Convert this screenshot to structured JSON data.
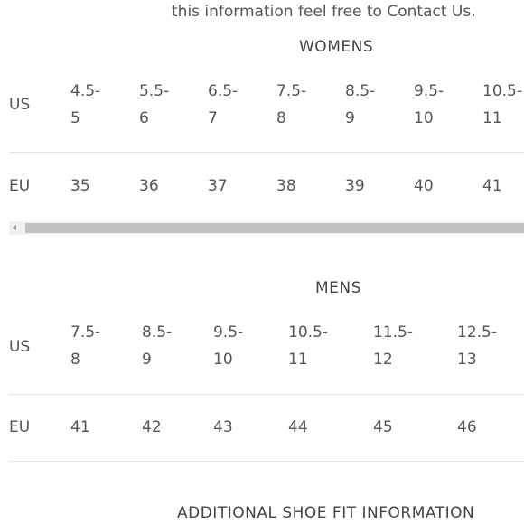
{
  "intro": "this information feel free to Contact Us.",
  "womens": {
    "title": "WOMENS",
    "us": {
      "label": "US",
      "cells": [
        [
          "4.5-",
          "5"
        ],
        [
          "5.5-",
          "6"
        ],
        [
          "6.5-",
          "7"
        ],
        [
          "7.5-",
          "8"
        ],
        [
          "8.5-",
          "9"
        ],
        [
          "9.5-",
          "10"
        ],
        [
          "10.5-",
          "11"
        ]
      ]
    },
    "eu": {
      "label": "EU",
      "cells": [
        "35",
        "36",
        "37",
        "38",
        "39",
        "40",
        "41"
      ]
    }
  },
  "mens": {
    "title": "MENS",
    "us": {
      "label": "US",
      "cells": [
        [
          "7.5-",
          "8"
        ],
        [
          "8.5-",
          "9"
        ],
        [
          "9.5-",
          "10"
        ],
        [
          "10.5-",
          "11"
        ],
        [
          "11.5-",
          "12"
        ],
        [
          "12.5-",
          "13"
        ]
      ]
    },
    "eu": {
      "label": "EU",
      "cells": [
        "41",
        "42",
        "43",
        "44",
        "45",
        "46"
      ]
    }
  },
  "footer": "ADDITIONAL SHOE FIT INFORMATION"
}
